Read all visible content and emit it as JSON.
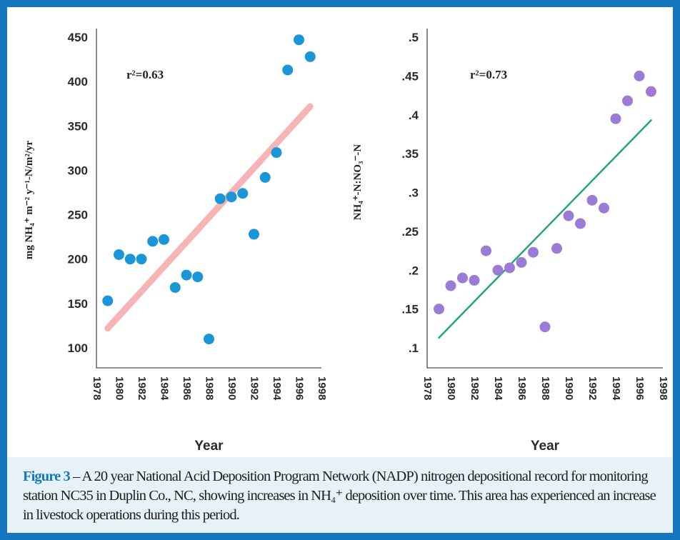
{
  "chart_data": [
    {
      "type": "scatter",
      "xlabel": "Year",
      "ylabel": "mg NH₄⁺ m⁻² y⁻¹-N/m²/yr",
      "x_ticks": [
        "1978",
        "1980",
        "1982",
        "1984",
        "1986",
        "1988",
        "1990",
        "1992",
        "1994",
        "1996",
        "1998"
      ],
      "y_ticks": [
        "450",
        "400",
        "350",
        "300",
        "250",
        "200",
        "150",
        "100"
      ],
      "xlim": [
        1978,
        1998
      ],
      "ylim": [
        100,
        450
      ],
      "annotation": "r²=0.63",
      "series": [
        {
          "x": [
            1979,
            1980,
            1981,
            1982,
            1983,
            1984,
            1985,
            1986,
            1987,
            1988,
            1989,
            1990,
            1991,
            1992,
            1993,
            1994,
            1995,
            1996,
            1997
          ],
          "y": [
            153,
            205,
            200,
            200,
            220,
            222,
            168,
            182,
            180,
            110,
            268,
            270,
            274,
            228,
            292,
            320,
            413,
            447,
            428
          ]
        }
      ],
      "trendline": {
        "x": [
          1979,
          1997
        ],
        "y": [
          122,
          372
        ]
      },
      "colors": {
        "points": "#1a96d8",
        "trend": "#f6b4b4"
      }
    },
    {
      "type": "scatter",
      "xlabel": "Year",
      "ylabel": "NH₄⁺-N:NO₃⁻-N",
      "x_ticks": [
        "1978",
        "1980",
        "1982",
        "1984",
        "1986",
        "1988",
        "1990",
        "1992",
        "1994",
        "1996",
        "1998"
      ],
      "y_ticks": [
        ".5",
        ".45",
        ".4",
        ".35",
        ".3",
        ".25",
        ".2",
        ".15",
        ".1"
      ],
      "xlim": [
        1978,
        1998
      ],
      "ylim": [
        0.1,
        0.5
      ],
      "annotation": "r²=0.73",
      "series": [
        {
          "x": [
            1979,
            1980,
            1981,
            1982,
            1983,
            1984,
            1985,
            1986,
            1987,
            1988,
            1989,
            1990,
            1991,
            1992,
            1993,
            1994,
            1995,
            1996,
            1997
          ],
          "y": [
            0.15,
            0.18,
            0.19,
            0.187,
            0.225,
            0.2,
            0.203,
            0.21,
            0.223,
            0.127,
            0.228,
            0.27,
            0.26,
            0.29,
            0.28,
            0.395,
            0.418,
            0.45,
            0.43
          ]
        }
      ],
      "trendline": {
        "x": [
          1979,
          1997
        ],
        "y": [
          0.113,
          0.393
        ]
      },
      "colors": {
        "points": "#9b7bd6",
        "trend": "#24a57a"
      }
    }
  ],
  "caption": {
    "lead": "Figure 3",
    "text": " – A 20 year National Acid Deposition Program Network (NADP) nitrogen depositional record for monitoring station NC35 in Duplin Co., NC, showing increases in NH₄⁺ deposition over time. This area has experienced an increase in livestock operations during this period."
  },
  "colors": {
    "frame": "#1676be",
    "caption_bg": "#e6f1f8",
    "caption_lead": "#1676be"
  }
}
